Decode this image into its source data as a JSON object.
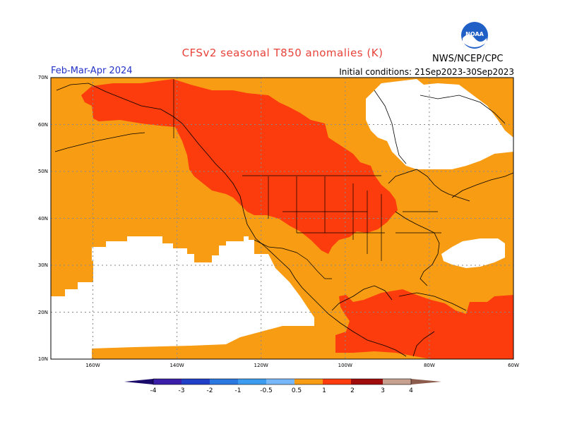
{
  "header": {
    "title": "CFSv2 seasonal T850 anomalies (K)",
    "period": "Feb-Mar-Apr 2024",
    "initial_conditions": "Initial conditions: 21Sep2023-30Sep2023",
    "agency": "NWS/NCEP/CPC",
    "logo_text": "NOAA"
  },
  "map": {
    "lat_labels": [
      "70N",
      "60N",
      "50N",
      "40N",
      "30N",
      "20N",
      "10N"
    ],
    "lon_labels": [
      "160W",
      "140W",
      "120W",
      "100W",
      "80W",
      "60W"
    ],
    "lat_range": [
      10,
      70
    ],
    "lon_range": [
      -170,
      -60
    ]
  },
  "colorbar": {
    "labels": [
      "-4",
      "-3",
      "-2",
      "-1",
      "-0.5",
      "0.5",
      "1",
      "2",
      "3",
      "4"
    ],
    "colors": [
      "#3c1fa8",
      "#2040c8",
      "#2a78e0",
      "#3c9cf0",
      "#78b8f8",
      "#ffffff",
      "#f89c14",
      "#fc3c0c",
      "#a00c0c",
      "#c8a090",
      "#8c5c4c"
    ]
  },
  "colors": {
    "orange": "#f89c14",
    "red": "#fc3c0c",
    "white": "#ffffff",
    "title": "#e8423a",
    "period": "#2432c8"
  }
}
